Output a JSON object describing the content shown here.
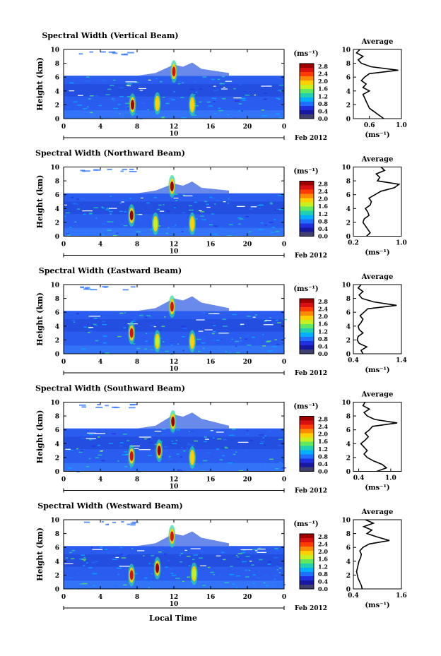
{
  "figure": {
    "xlabel": "Local Time",
    "date_label": "Feb 2012",
    "date_marker": "10",
    "colorbar_unit": "(ms⁻¹)",
    "colorbar_ticks": [
      "2.8",
      "2.4",
      "2.0",
      "1.6",
      "1.2",
      "0.8",
      "0.4",
      "0.0"
    ],
    "colorbar_colors": [
      "#9e0000",
      "#d81010",
      "#ff3b00",
      "#ff8a00",
      "#ffd000",
      "#c8f020",
      "#60e860",
      "#20d0b0",
      "#00b0ff",
      "#2070ff",
      "#2030e0",
      "#1818a0",
      "#404070"
    ],
    "profile_title": "Average",
    "profile_xlabel": "(ms⁻¹)"
  },
  "chart_data": [
    {
      "type": "heatmap",
      "title": "Spectral Width (Vertical Beam)",
      "xlabel": "Local Time",
      "ylabel": "Height (km)",
      "xlim": [
        0,
        24
      ],
      "ylim": [
        0,
        10
      ],
      "xticks": [
        "0",
        "4",
        "8",
        "12",
        "16",
        "20",
        "0"
      ],
      "yticks": [
        "0",
        "2",
        "4",
        "6",
        "8",
        "10"
      ],
      "colorbar": {
        "label": "(ms⁻¹)",
        "range": [
          0.0,
          2.8
        ]
      },
      "cloud_top_km": 6.2,
      "high_layer_km": [
        6.2,
        7.8
      ],
      "hotspots": [
        {
          "x": 7.5,
          "y": 2.0,
          "value": 2.8
        },
        {
          "x": 10.2,
          "y": 2.2,
          "value": 1.8
        },
        {
          "x": 12.0,
          "y": 6.8,
          "value": 2.6
        },
        {
          "x": 14.0,
          "y": 2.0,
          "value": 1.8
        }
      ],
      "profile": {
        "title": "Average",
        "xlabel": "(ms⁻¹)",
        "xlim": [
          0.4,
          1.0
        ],
        "xticks": [
          "0.6",
          "1.0"
        ],
        "heights": [
          0,
          0.5,
          1,
          1.5,
          2,
          2.5,
          3,
          3.5,
          4,
          4.5,
          5,
          5.5,
          6,
          6.5,
          7,
          7.5,
          8,
          8.5,
          9,
          9.5,
          10
        ],
        "values": [
          0.78,
          0.72,
          0.66,
          0.6,
          0.58,
          0.56,
          0.54,
          0.52,
          0.6,
          0.52,
          0.56,
          0.5,
          0.54,
          0.6,
          0.96,
          0.62,
          0.5,
          0.46,
          0.52,
          0.44,
          0.48
        ]
      }
    },
    {
      "type": "heatmap",
      "title": "Spectral Width (Northward Beam)",
      "xlabel": "Local Time",
      "ylabel": "Height (km)",
      "xlim": [
        0,
        24
      ],
      "ylim": [
        0,
        10
      ],
      "xticks": [
        "0",
        "4",
        "8",
        "12",
        "16",
        "20",
        "0"
      ],
      "yticks": [
        "0",
        "2",
        "4",
        "6",
        "8",
        "10"
      ],
      "colorbar": {
        "label": "(ms⁻¹)",
        "range": [
          0.0,
          2.8
        ]
      },
      "cloud_top_km": 6.2,
      "high_layer_km": [
        6.2,
        7.6
      ],
      "hotspots": [
        {
          "x": 7.4,
          "y": 3.0,
          "value": 2.8
        },
        {
          "x": 10.0,
          "y": 1.8,
          "value": 1.6
        },
        {
          "x": 11.8,
          "y": 7.2,
          "value": 2.8
        },
        {
          "x": 14.0,
          "y": 1.8,
          "value": 1.8
        }
      ],
      "profile": {
        "title": "Average",
        "xlabel": "(ms⁻¹)",
        "xlim": [
          0.2,
          1.0
        ],
        "xticks": [
          "0.2",
          "1.0"
        ],
        "heights": [
          0,
          0.5,
          1,
          1.5,
          2,
          2.5,
          3,
          3.5,
          4,
          4.5,
          5,
          5.5,
          6,
          6.5,
          7,
          7.5,
          8,
          8.5,
          9,
          9.5,
          10
        ],
        "values": [
          0.42,
          0.48,
          0.44,
          0.4,
          0.36,
          0.38,
          0.46,
          0.44,
          0.4,
          0.48,
          0.5,
          0.46,
          0.56,
          0.66,
          0.88,
          0.96,
          0.6,
          0.64,
          0.58,
          0.72,
          0.66
        ]
      }
    },
    {
      "type": "heatmap",
      "title": "Spectral Width (Eastward Beam)",
      "xlabel": "Local Time",
      "ylabel": "Height (km)",
      "xlim": [
        0,
        24
      ],
      "ylim": [
        0,
        10
      ],
      "xticks": [
        "0",
        "4",
        "8",
        "12",
        "16",
        "20",
        "0"
      ],
      "yticks": [
        "0",
        "2",
        "4",
        "6",
        "8",
        "10"
      ],
      "colorbar": {
        "label": "(ms⁻¹)",
        "range": [
          0.0,
          2.8
        ]
      },
      "cloud_top_km": 6.2,
      "high_layer_km": [
        6.2,
        8.0
      ],
      "hotspots": [
        {
          "x": 7.4,
          "y": 3.0,
          "value": 2.6
        },
        {
          "x": 10.2,
          "y": 1.8,
          "value": 1.6
        },
        {
          "x": 11.8,
          "y": 6.8,
          "value": 2.6
        },
        {
          "x": 14.0,
          "y": 1.8,
          "value": 1.8
        }
      ],
      "profile": {
        "title": "Average",
        "xlabel": "(ms⁻¹)",
        "xlim": [
          0.4,
          1.4
        ],
        "xticks": [
          "0.4",
          "1.4"
        ],
        "heights": [
          0,
          0.5,
          1,
          1.5,
          2,
          2.5,
          3,
          3.5,
          4,
          4.5,
          5,
          5.5,
          6,
          6.5,
          7,
          7.5,
          8,
          8.5,
          9,
          9.5,
          10
        ],
        "values": [
          0.6,
          0.56,
          0.68,
          0.52,
          0.48,
          0.5,
          0.6,
          0.52,
          0.5,
          0.56,
          0.6,
          0.54,
          0.62,
          0.7,
          1.3,
          0.82,
          0.58,
          0.52,
          0.6,
          0.5,
          0.56
        ]
      }
    },
    {
      "type": "heatmap",
      "title": "Spectral Width (Southward Beam)",
      "xlabel": "Local Time",
      "ylabel": "Height (km)",
      "xlim": [
        0,
        24
      ],
      "ylim": [
        0,
        10
      ],
      "xticks": [
        "0",
        "4",
        "8",
        "12",
        "16",
        "20",
        "0"
      ],
      "yticks": [
        "0",
        "2",
        "4",
        "6",
        "8",
        "10"
      ],
      "colorbar": {
        "label": "(ms⁻¹)",
        "range": [
          0.0,
          2.8
        ]
      },
      "cloud_top_km": 6.2,
      "high_layer_km": [
        6.2,
        8.2
      ],
      "hotspots": [
        {
          "x": 7.4,
          "y": 2.2,
          "value": 2.6
        },
        {
          "x": 10.4,
          "y": 3.0,
          "value": 2.8
        },
        {
          "x": 11.9,
          "y": 7.2,
          "value": 2.8
        },
        {
          "x": 14.0,
          "y": 2.0,
          "value": 1.8
        }
      ],
      "profile": {
        "title": "Average",
        "xlabel": "(ms⁻¹)",
        "xlim": [
          0.3,
          1.2
        ],
        "xticks": [
          "0.4",
          "1.0"
        ],
        "heights": [
          0,
          0.5,
          1,
          1.5,
          2,
          2.5,
          3,
          3.5,
          4,
          4.5,
          5,
          5.5,
          6,
          6.5,
          7,
          7.5,
          8,
          8.5,
          9,
          9.5,
          10
        ],
        "values": [
          0.74,
          0.92,
          0.84,
          0.68,
          0.56,
          0.5,
          0.56,
          0.5,
          0.44,
          0.52,
          0.58,
          0.52,
          0.6,
          0.66,
          1.12,
          0.7,
          0.56,
          0.5,
          0.6,
          0.48,
          0.52
        ]
      }
    },
    {
      "type": "heatmap",
      "title": "Spectral Width (Westward Beam)",
      "xlabel": "Local Time",
      "ylabel": "Height (km)",
      "xlim": [
        0,
        24
      ],
      "ylim": [
        0,
        10
      ],
      "xticks": [
        "0",
        "4",
        "8",
        "12",
        "16",
        "20",
        "0"
      ],
      "yticks": [
        "0",
        "2",
        "4",
        "6",
        "8",
        "10"
      ],
      "colorbar": {
        "label": "(ms⁻¹)",
        "range": [
          0.0,
          2.8
        ]
      },
      "cloud_top_km": 6.2,
      "high_layer_km": [
        6.2,
        8.0
      ],
      "hotspots": [
        {
          "x": 7.4,
          "y": 2.0,
          "value": 2.6
        },
        {
          "x": 10.2,
          "y": 3.0,
          "value": 2.8
        },
        {
          "x": 11.8,
          "y": 7.6,
          "value": 2.6
        },
        {
          "x": 14.2,
          "y": 2.2,
          "value": 1.6
        }
      ],
      "profile": {
        "title": "Average",
        "xlabel": "(ms⁻¹)",
        "xlim": [
          0.4,
          1.6
        ],
        "xticks": [
          "0.4",
          "1.6"
        ],
        "heights": [
          0,
          0.5,
          1,
          1.5,
          2,
          2.5,
          3,
          3.5,
          4,
          4.5,
          5,
          5.5,
          6,
          6.5,
          7,
          7.5,
          8,
          8.5,
          9,
          9.5,
          10
        ],
        "values": [
          0.62,
          0.6,
          0.56,
          0.52,
          0.5,
          0.48,
          0.5,
          0.52,
          0.54,
          0.58,
          0.6,
          0.56,
          0.64,
          0.8,
          1.3,
          1.0,
          0.74,
          0.86,
          0.66,
          0.9,
          0.7
        ]
      }
    }
  ]
}
